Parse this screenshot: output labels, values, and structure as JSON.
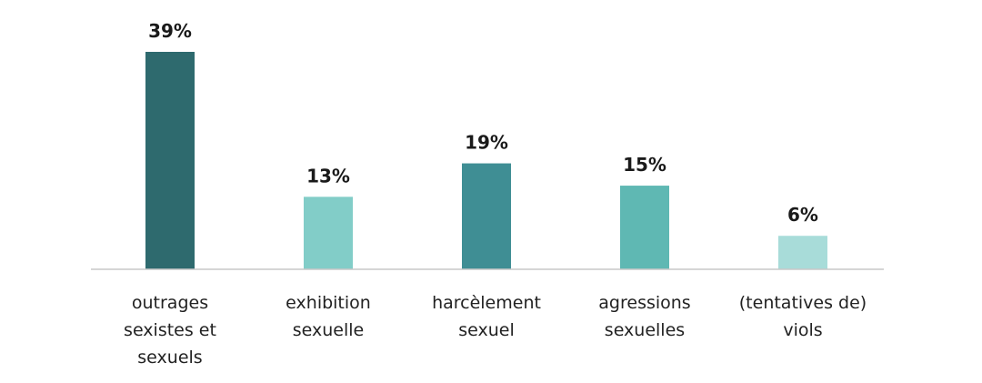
{
  "chart_data": {
    "type": "bar",
    "title": "",
    "xlabel": "",
    "ylabel": "",
    "ylim": [
      0,
      39
    ],
    "grid": false,
    "legend": "none",
    "categories": [
      [
        "outrages",
        "sexistes et",
        "sexuels"
      ],
      [
        "exhibition",
        "sexuelle"
      ],
      [
        "harcèlement",
        "sexuel"
      ],
      [
        "agressions",
        "sexuelles"
      ],
      [
        "(tentatives de)",
        "viols"
      ]
    ],
    "values": [
      39,
      13,
      19,
      15,
      6
    ],
    "value_labels": [
      "39%",
      "13%",
      "19%",
      "15%",
      "6%"
    ],
    "colors": [
      "#2E6A6E",
      "#82CDC8",
      "#3F8E94",
      "#5FB8B3",
      "#A8DCD9"
    ],
    "axis_color": "#C8C8C8"
  }
}
